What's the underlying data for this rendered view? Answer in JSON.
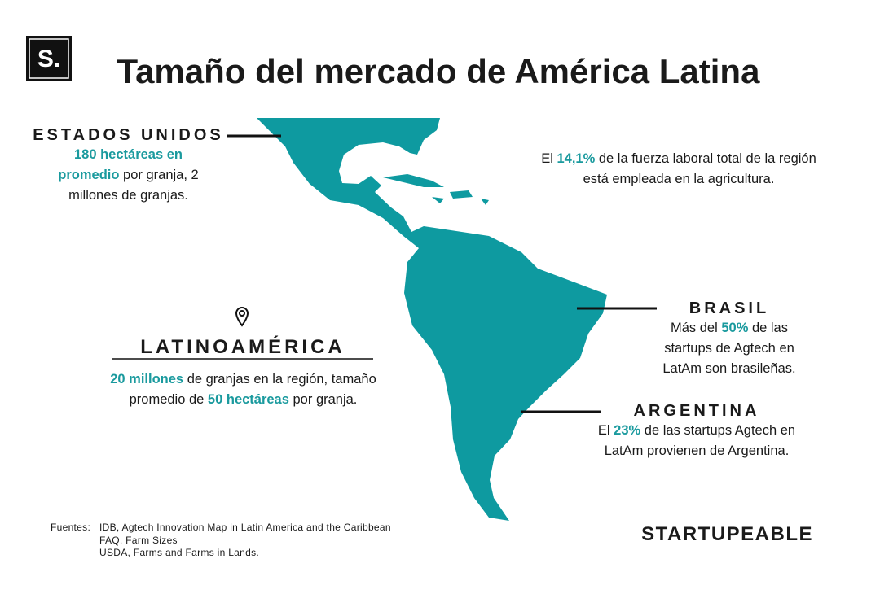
{
  "logo": {
    "text": "S."
  },
  "title": "Tamaño del mercado de América Latina",
  "callouts": [
    {
      "heading": "ESTADOS UNIDOS",
      "body": [
        {
          "text": "180 hectáreas en promedio",
          "color": "#1a9a9e"
        },
        {
          "text": " por granja, 2 millones de granjas."
        }
      ]
    },
    {
      "body": [
        {
          "text": "El "
        },
        {
          "text": "14,1%",
          "color": "#1a9a9e"
        },
        {
          "text": " de la fuerza laboral total de la región está empleada en la agricultura."
        }
      ]
    },
    {
      "heading": "LATINOAMÉRICA",
      "body": [
        {
          "text": "20 millones",
          "color": "#1a9a9e"
        },
        {
          "text": " de granjas en la región, tamaño promedio de "
        },
        {
          "text": "50 hectáreas",
          "color": "#1a9a9e"
        },
        {
          "text": " por granja."
        }
      ]
    },
    {
      "heading": "BRASIL",
      "body": [
        {
          "text": "Más del "
        },
        {
          "text": "50%",
          "color": "#1a9a9e"
        },
        {
          "text": " de las startups de Agtech en LatAm son brasileñas."
        }
      ]
    },
    {
      "heading": "ARGENTINA",
      "body": [
        {
          "text": "El "
        },
        {
          "text": "23%",
          "color": "#1a9a9e"
        },
        {
          "text": " de las startups Agtech en LatAm provienen de Argentina."
        }
      ]
    }
  ],
  "sources": {
    "label": "Fuentes:",
    "items": [
      "IDB, Agtech Innovation Map in Latin America and the Caribbean",
      "FAQ, Farm Sizes",
      "USDA, Farms and Farms in Lands."
    ]
  },
  "brand": "STARTUPEABLE"
}
